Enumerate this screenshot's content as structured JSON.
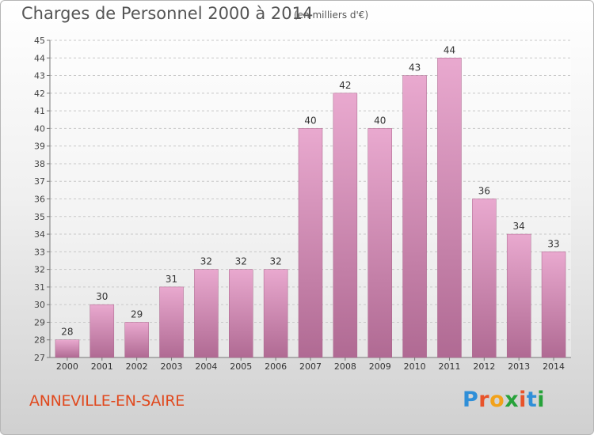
{
  "title": "Charges de Personnel 2000 à 2014",
  "unit_note": "(en milliers d'€)",
  "place": "ANNEVILLE-EN-SAIRE",
  "logo": {
    "text": "Proxiti",
    "letter_colors": [
      "#2f8fd8",
      "#e8532a",
      "#f2a21a",
      "#27a23a",
      "#e8532a",
      "#2f8fd8",
      "#27a23a"
    ]
  },
  "colors": {
    "bar_light": "#e9a9cf",
    "bar_dark": "#b06a93",
    "place_text": "#e0491e"
  },
  "chart_data": {
    "type": "bar",
    "categories": [
      "2000",
      "2001",
      "2002",
      "2003",
      "2004",
      "2005",
      "2006",
      "2007",
      "2008",
      "2009",
      "2010",
      "2011",
      "2012",
      "2013",
      "2014"
    ],
    "values": [
      28,
      30,
      29,
      31,
      32,
      32,
      32,
      40,
      42,
      40,
      43,
      44,
      36,
      34,
      33
    ],
    "ylim": [
      27,
      45
    ],
    "yticks": [
      27,
      28,
      29,
      30,
      31,
      32,
      33,
      34,
      35,
      36,
      37,
      38,
      39,
      40,
      41,
      42,
      43,
      44,
      45
    ],
    "grid": true,
    "data_labels": true
  }
}
